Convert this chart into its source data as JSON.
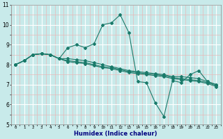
{
  "xlabel": "Humidex (Indice chaleur)",
  "ylabel": "",
  "bg_color": "#c8eaea",
  "line_color": "#1a7a6a",
  "major_grid_color": "#ffffff",
  "minor_grid_color": "#e8b8b8",
  "xlim": [
    -0.5,
    23.5
  ],
  "ylim": [
    5,
    11
  ],
  "xtick_labels": [
    "0",
    "1",
    "2",
    "3",
    "4",
    "5",
    "6",
    "7",
    "8",
    "9",
    "10",
    "11",
    "12",
    "13",
    "14",
    "15",
    "16",
    "17",
    "18",
    "19",
    "20",
    "21",
    "22",
    "23"
  ],
  "ytick_labels": [
    "5",
    "6",
    "7",
    "8",
    "9",
    "10",
    "11"
  ],
  "series": [
    [
      8.0,
      8.2,
      8.5,
      8.55,
      8.5,
      8.3,
      8.85,
      9.0,
      8.85,
      9.05,
      10.0,
      10.1,
      10.5,
      9.6,
      7.15,
      7.1,
      6.1,
      5.4,
      7.2,
      7.1,
      7.5,
      7.7,
      7.15,
      7.0
    ],
    [
      8.0,
      8.2,
      8.5,
      8.55,
      8.5,
      8.3,
      8.3,
      8.25,
      8.2,
      8.1,
      8.0,
      7.9,
      7.8,
      7.7,
      7.65,
      7.6,
      7.55,
      7.5,
      7.4,
      7.4,
      7.35,
      7.3,
      7.15,
      7.0
    ],
    [
      8.0,
      8.2,
      8.5,
      8.55,
      8.5,
      8.3,
      8.2,
      8.15,
      8.1,
      8.0,
      7.9,
      7.85,
      7.75,
      7.65,
      7.6,
      7.55,
      7.5,
      7.45,
      7.35,
      7.3,
      7.25,
      7.2,
      7.1,
      6.95
    ],
    [
      8.0,
      8.2,
      8.5,
      8.55,
      8.5,
      8.3,
      8.15,
      8.1,
      8.05,
      7.95,
      7.85,
      7.8,
      7.7,
      7.6,
      7.55,
      7.5,
      7.45,
      7.4,
      7.3,
      7.25,
      7.2,
      7.15,
      7.05,
      6.9
    ]
  ]
}
